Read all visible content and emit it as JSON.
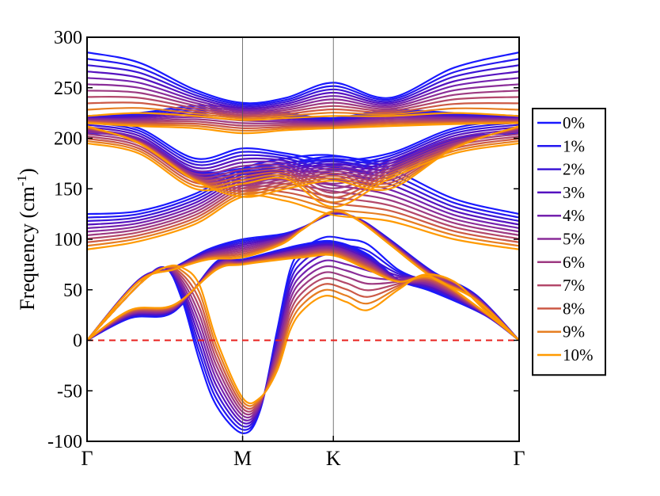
{
  "chart_data": {
    "type": "line",
    "title": "",
    "xlabel": "",
    "ylabel": "Frequency (cm",
    "ylabel_sup": "-1",
    "ylabel_close": ")",
    "ylim": [
      -100,
      300
    ],
    "yticks": [
      -100,
      -50,
      0,
      50,
      100,
      150,
      200,
      250,
      300
    ],
    "xlim": [
      0,
      1
    ],
    "xticks": [
      {
        "pos": 0.0,
        "label": "Γ"
      },
      {
        "pos": 0.36,
        "label": "M"
      },
      {
        "pos": 0.57,
        "label": "K"
      },
      {
        "pos": 1.0,
        "label": "Γ"
      }
    ],
    "grid": false,
    "legend_position": "right",
    "zero_line": {
      "y": 0,
      "color": "#e8201c",
      "style": "dashed"
    },
    "series": [
      {
        "name": "0%",
        "color": "#1919ff",
        "strain": 0
      },
      {
        "name": "1%",
        "color": "#2417f0",
        "strain": 1
      },
      {
        "name": "2%",
        "color": "#3c17d6",
        "strain": 2
      },
      {
        "name": "3%",
        "color": "#5512c0",
        "strain": 3
      },
      {
        "name": "4%",
        "color": "#7422ae",
        "strain": 4
      },
      {
        "name": "5%",
        "color": "#8a2c98",
        "strain": 5
      },
      {
        "name": "6%",
        "color": "#9d3a82",
        "strain": 6
      },
      {
        "name": "7%",
        "color": "#b3486a",
        "strain": 7
      },
      {
        "name": "8%",
        "color": "#cc5a46",
        "strain": 8
      },
      {
        "name": "9%",
        "color": "#e67e22",
        "strain": 9
      },
      {
        "name": "10%",
        "color": "#ff9a00",
        "strain": 10
      }
    ],
    "branches": [
      {
        "id": "TA",
        "x": [
          0,
          0.1,
          0.2,
          0.3,
          0.36,
          0.45,
          0.5,
          0.57,
          0.65,
          0.72,
          0.8,
          0.92,
          1.0
        ],
        "y0": [
          0,
          22,
          28,
          78,
          80,
          90,
          95,
          98,
          85,
          60,
          48,
          25,
          0
        ],
        "y10": [
          0,
          30,
          35,
          70,
          75,
          80,
          82,
          84,
          70,
          58,
          62,
          28,
          0
        ]
      },
      {
        "id": "LA",
        "x": [
          0,
          0.12,
          0.2,
          0.28,
          0.36,
          0.45,
          0.5,
          0.57,
          0.63,
          0.7,
          0.8,
          0.9,
          1.0
        ],
        "y0": [
          0,
          60,
          72,
          90,
          100,
          105,
          112,
          125,
          120,
          100,
          68,
          45,
          0
        ],
        "y10": [
          0,
          58,
          70,
          80,
          82,
          95,
          110,
          128,
          118,
          95,
          62,
          40,
          0
        ]
      },
      {
        "id": "ZA",
        "x": [
          0,
          0.12,
          0.18,
          0.22,
          0.26,
          0.3,
          0.36,
          0.4,
          0.44,
          0.47,
          0.5,
          0.55,
          0.6,
          0.65,
          0.72,
          0.78,
          0.85,
          0.92,
          1.0
        ],
        "y0": [
          0,
          55,
          72,
          40,
          -20,
          -65,
          -92,
          -70,
          10,
          70,
          90,
          102,
          100,
          95,
          70,
          60,
          55,
          35,
          0
        ],
        "y10": [
          0,
          55,
          72,
          72,
          55,
          0,
          -57,
          -57,
          -30,
          10,
          30,
          44,
          38,
          30,
          50,
          65,
          58,
          30,
          0
        ]
      },
      {
        "id": "O1",
        "x": [
          0,
          0.12,
          0.25,
          0.36,
          0.46,
          0.57,
          0.7,
          0.85,
          1.0
        ],
        "y0": [
          125,
          128,
          145,
          170,
          180,
          183,
          170,
          140,
          125
        ],
        "y10": [
          90,
          98,
          115,
          142,
          138,
          124,
          118,
          100,
          90
        ]
      },
      {
        "id": "O2",
        "x": [
          0,
          0.12,
          0.25,
          0.36,
          0.46,
          0.57,
          0.7,
          0.85,
          1.0
        ],
        "y0": [
          205,
          200,
          168,
          170,
          175,
          182,
          178,
          200,
          205
        ],
        "y10": [
          212,
          195,
          158,
          142,
          150,
          158,
          150,
          190,
          212
        ]
      },
      {
        "id": "O3",
        "x": [
          0,
          0.12,
          0.25,
          0.36,
          0.46,
          0.57,
          0.7,
          0.85,
          1.0
        ],
        "y0": [
          218,
          210,
          180,
          190,
          185,
          178,
          185,
          210,
          218
        ],
        "y10": [
          195,
          185,
          150,
          155,
          160,
          132,
          160,
          185,
          195
        ]
      },
      {
        "id": "O4",
        "x": [
          0,
          0.12,
          0.25,
          0.36,
          0.46,
          0.57,
          0.7,
          0.85,
          1.0
        ],
        "y0": [
          222,
          225,
          232,
          230,
          225,
          220,
          228,
          225,
          222
        ],
        "y10": [
          215,
          212,
          210,
          205,
          208,
          210,
          212,
          214,
          215
        ]
      },
      {
        "id": "O5",
        "x": [
          0,
          0.12,
          0.25,
          0.36,
          0.46,
          0.57,
          0.7,
          0.85,
          1.0
        ],
        "y0": [
          285,
          275,
          248,
          235,
          240,
          255,
          240,
          270,
          285
        ],
        "y10": [
          222,
          225,
          222,
          218,
          220,
          222,
          222,
          225,
          222
        ]
      }
    ]
  }
}
